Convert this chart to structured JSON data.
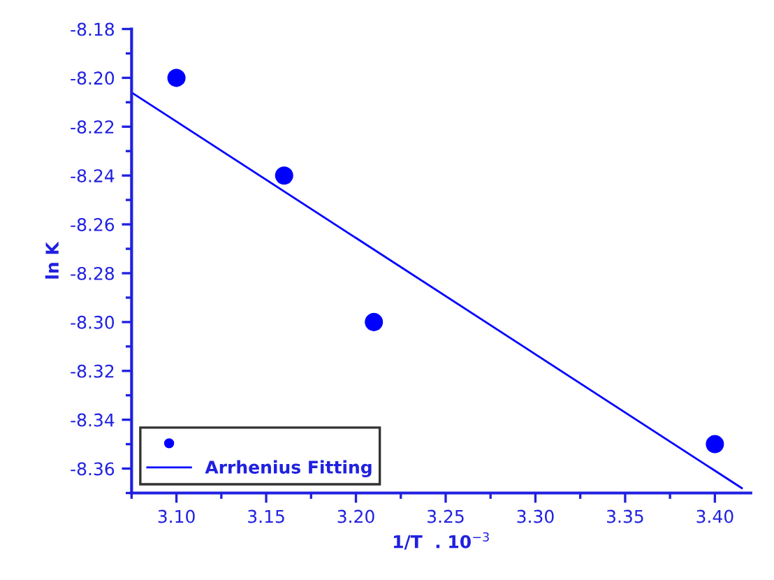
{
  "chart_data": {
    "type": "scatter",
    "xlabel": "1/T  . 10$^{−3}$",
    "ylabel": "ln K",
    "series": [
      {
        "color": "#0000ff",
        "marker": "circle",
        "x": [
          3.1,
          3.16,
          3.21,
          3.4
        ],
        "values": [
          -8.2,
          -8.24,
          -8.3,
          -8.35
        ]
      },
      {
        "type": "line",
        "name": "Arrhenius Fitting",
        "color": "#0000ff",
        "marker": "none",
        "line_style": "solid",
        "x": [
          3.075,
          3.415
        ],
        "values": [
          -8.206,
          -8.368
        ]
      }
    ],
    "xlim": [
      3.075,
      3.42
    ],
    "xticks": [
      {
        "value": 3.1,
        "label": "3.10"
      },
      3.15,
      {
        "value": 3.2,
        "label": "3.20"
      },
      3.25,
      {
        "value": 3.3,
        "label": "3.30"
      },
      3.35,
      {
        "value": 3.4,
        "label": "3.40"
      }
    ],
    "ylim": [
      -8.37,
      -8.18
    ],
    "yticks": [
      -8.36,
      -8.34,
      -8.32,
      {
        "value": -8.3,
        "label": "-8.30"
      },
      -8.28,
      -8.26,
      -8.24,
      -8.22,
      {
        "value": -8.2,
        "label": "-8.20"
      },
      -8.18
    ],
    "grid": false,
    "legend": "bottom left"
  }
}
